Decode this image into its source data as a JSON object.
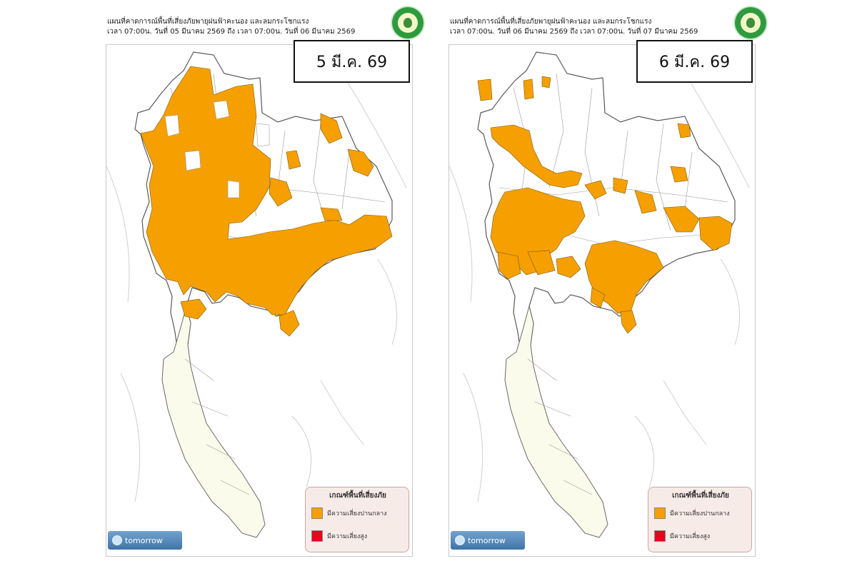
{
  "colors": {
    "moderate_risk": "#F5A000",
    "high_risk": "#E8001C",
    "border": "#6f6f6f",
    "land": "#ffffff",
    "coast": "#c8c8c8",
    "south": "#fafbea"
  },
  "panels": [
    {
      "header_line1": "แผนที่คาดการณ์พื้นที่เสี่ยงภัยพายุฝนฟ้าคะนอง และลมกระโชกแรง",
      "header_line2": "เวลา 07:00น. วันที่  05  มีนาคม  2569 ถึง เวลา 07:00น. วันที่ 06  มีนาคม  2569",
      "date_label": "5 มี.ค. 69",
      "legend_title": "เกณฑ์พื้นที่เสี่ยงภัย",
      "legend_items": [
        {
          "label": "มีความเสี่ยงปานกลาง",
          "color": "#F5A000"
        },
        {
          "label": "มีความเสี่ยงสูง",
          "color": "#E8001C"
        }
      ],
      "brand": "tomorrow",
      "brand_icon": "tomorrow-logo-icon",
      "seal_icon": "department-seal-icon"
    },
    {
      "header_line1": "แผนที่คาดการณ์พื้นที่เสี่ยงภัยพายุฝนฟ้าคะนอง และลมกระโชกแรง",
      "header_line2": "เวลา 07:00น. วันที่  06  มีนาคม  2569 ถึง เวลา 07:00น. วันที่ 07  มีนาคม  2569",
      "date_label": "6 มี.ค. 69",
      "legend_title": "เกณฑ์พื้นที่เสี่ยงภัย",
      "legend_items": [
        {
          "label": "มีความเสี่ยงปานกลาง",
          "color": "#F5A000"
        },
        {
          "label": "มีความเสี่ยงสูง",
          "color": "#E8001C"
        }
      ],
      "brand": "tomorrow",
      "brand_icon": "tomorrow-logo-icon",
      "seal_icon": "department-seal-icon"
    }
  ]
}
